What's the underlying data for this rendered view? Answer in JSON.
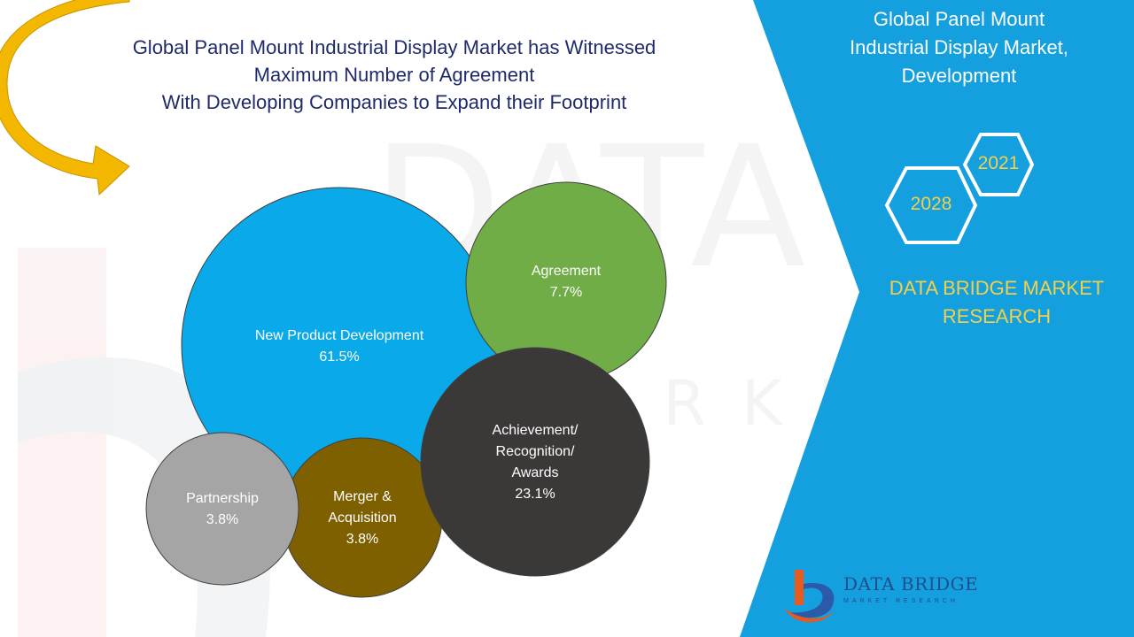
{
  "title": {
    "lines": [
      "Global Panel Mount Industrial Display Market has Witnessed",
      "Maximum Number of Agreement",
      "With Developing Companies to Expand their Footprint"
    ]
  },
  "side_panel": {
    "heading_lines": [
      "Global Panel Mount",
      "Industrial Display Market,",
      "Development"
    ],
    "year_start": "2021",
    "year_end": "2028",
    "brand_lines": [
      "DATA BRIDGE MARKET",
      "RESEARCH"
    ],
    "logo_name": "DATA BRIDGE",
    "logo_tagline": "MARKET RESEARCH"
  },
  "colors": {
    "panel_blue": "#149fdf",
    "title_navy": "#1f2a6b",
    "brand_yellow": "#f2d04a",
    "arrow_gold": "#f3b700"
  },
  "chart_data": {
    "type": "bubble",
    "title": "Global Panel Mount Industrial Display Market, Development",
    "unit": "%",
    "series": [
      {
        "name": "New Product Development",
        "label_lines": [
          "New Product Development"
        ],
        "value": 61.5,
        "value_label": "61.5%",
        "color": "#0aa9ea"
      },
      {
        "name": "Agreement",
        "label_lines": [
          "Agreement"
        ],
        "value": 7.7,
        "value_label": "7.7%",
        "color": "#70ad47"
      },
      {
        "name": "Achievement/ Recognition/ Awards",
        "label_lines": [
          "Achievement/",
          "Recognition/",
          "Awards"
        ],
        "value": 23.1,
        "value_label": "23.1%",
        "color": "#3b3838"
      },
      {
        "name": "Merger & Acquisition",
        "label_lines": [
          "Merger &",
          "Acquisition"
        ],
        "value": 3.8,
        "value_label": "3.8%",
        "color": "#7f6000"
      },
      {
        "name": "Partnership",
        "label_lines": [
          "Partnership"
        ],
        "value": 3.8,
        "value_label": "3.8%",
        "color": "#a5a5a5"
      }
    ]
  }
}
